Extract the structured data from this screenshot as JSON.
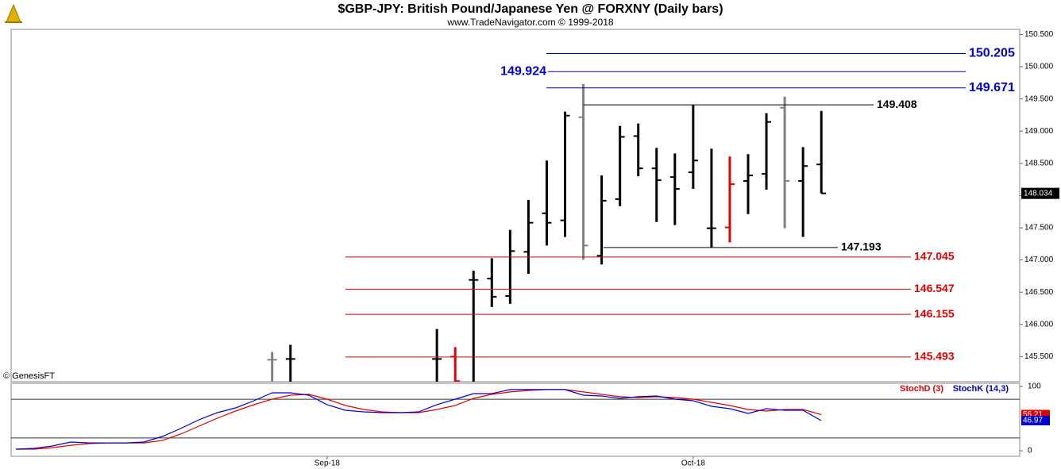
{
  "chart_data": [
    {
      "type": "ohlc",
      "title": "$GBP-JPY:  British Pound/Japanese Yen @ FORXNY  (Daily bars)",
      "subtitle": "www.TradeNavigator.com © 1999-2018",
      "credit": "© GenesisFT",
      "ylim": [
        145.11,
        150.58
      ],
      "yticks": [
        {
          "value": 145.5,
          "label": "145.500"
        },
        {
          "value": 146,
          "label": "146.000"
        },
        {
          "value": 146.5,
          "label": "146.500"
        },
        {
          "value": 147,
          "label": "147.000"
        },
        {
          "value": 147.5,
          "label": "147.500"
        },
        {
          "value": 148,
          "label": "148.000"
        },
        {
          "value": 148.5,
          "label": "148.500"
        },
        {
          "value": 149,
          "label": "149.000"
        },
        {
          "value": 149.5,
          "label": "149.500"
        },
        {
          "value": 150,
          "label": "150.000"
        },
        {
          "value": 150.5,
          "label": "150.500"
        }
      ],
      "open": [
        null,
        null,
        null,
        null,
        null,
        null,
        null,
        null,
        null,
        null,
        null,
        null,
        null,
        null,
        145.451,
        145.463,
        null,
        null,
        null,
        null,
        null,
        null,
        null,
        145.463,
        145.5,
        146.69,
        146.71,
        146.441,
        147.126,
        147.725,
        147.615,
        149.216,
        147.065,
        147.945,
        148.923,
        148.422,
        148.287,
        148.361,
        147.493,
        147.505,
        148.226,
        148.336,
        149.363,
        148.226,
        148.483
      ],
      "high": [
        null,
        null,
        null,
        null,
        null,
        null,
        null,
        null,
        null,
        null,
        null,
        null,
        null,
        null,
        145.573,
        145.683,
        null,
        null,
        null,
        null,
        null,
        null,
        null,
        145.928,
        145.647,
        146.833,
        147.028,
        147.468,
        147.933,
        148.544,
        149.302,
        149.73,
        148.312,
        149.082,
        149.119,
        148.74,
        148.654,
        149.408,
        148.727,
        148.605,
        148.642,
        149.278,
        149.534,
        148.752,
        149.314
      ],
      "low": [
        null,
        null,
        null,
        null,
        null,
        null,
        null,
        null,
        null,
        null,
        null,
        null,
        null,
        null,
        145.0,
        145.0,
        null,
        null,
        null,
        null,
        null,
        null,
        null,
        145.0,
        145.1,
        145.0,
        146.27,
        146.319,
        146.784,
        147.224,
        147.358,
        147.004,
        146.93,
        147.835,
        148.3,
        147.59,
        147.542,
        148.104,
        147.193,
        147.273,
        147.713,
        148.092,
        147.493,
        147.358,
        148.034
      ],
      "close": [
        null,
        null,
        null,
        null,
        null,
        null,
        null,
        null,
        null,
        null,
        null,
        null,
        null,
        null,
        145.451,
        145.463,
        null,
        null,
        null,
        null,
        null,
        null,
        null,
        145.463,
        145.12,
        146.69,
        146.429,
        147.138,
        147.578,
        147.578,
        149.241,
        147.224,
        147.92,
        148.911,
        148.422,
        148.238,
        148.104,
        148.544,
        147.493,
        148.177,
        148.312,
        149.143,
        148.226,
        148.458,
        148.034
      ],
      "colors": [
        null,
        null,
        null,
        null,
        null,
        null,
        null,
        null,
        null,
        null,
        null,
        null,
        null,
        null,
        "#808080",
        "#000000",
        null,
        null,
        null,
        null,
        null,
        null,
        null,
        "#000000",
        "#e00000",
        "#000000",
        "#000000",
        "#000000",
        "#000000",
        "#000000",
        "#000000",
        "#808080",
        "#000000",
        "#000000",
        "#000000",
        "#000000",
        "#000000",
        "#000000",
        "#000000",
        "#e00000",
        "#000000",
        "#000000",
        "#808080",
        "#000000",
        "#000000"
      ],
      "levels": [
        {
          "value": 150.205,
          "color": "#0000cc"
        },
        {
          "value": 149.924,
          "color": "#0000cc"
        },
        {
          "value": 149.671,
          "color": "#0000cc"
        },
        {
          "value": 149.408,
          "color": "#000000"
        },
        {
          "value": 147.193,
          "color": "#000000"
        },
        {
          "value": 147.045,
          "color": "#e00000"
        },
        {
          "value": 146.547,
          "color": "#e00000"
        },
        {
          "value": 146.155,
          "color": "#e00000"
        },
        {
          "value": 145.493,
          "color": "#e00000"
        }
      ]
    },
    {
      "type": "line",
      "categories": [
        null,
        null,
        null,
        null,
        null,
        null,
        null,
        null,
        null,
        null,
        null,
        null,
        null,
        null,
        null,
        null,
        null,
        "Sep-18",
        null,
        null,
        null,
        null,
        null,
        null,
        null,
        null,
        null,
        null,
        null,
        null,
        null,
        null,
        null,
        null,
        null,
        null,
        null,
        "Oct-18",
        null,
        null,
        null,
        null,
        null,
        null,
        null
      ],
      "ylim": [
        -8.6,
        104.9
      ],
      "yticks": [
        0,
        100
      ],
      "hlines": [
        20,
        80
      ],
      "series": [
        {
          "name": "StochD (3)",
          "color": "#e00000",
          "values": [
            2.5,
            2.5,
            4.9,
            8.6,
            11.1,
            12.3,
            12.3,
            12.3,
            16,
            25.9,
            38.3,
            50.6,
            61.7,
            71.6,
            80.2,
            86.4,
            87.7,
            80.2,
            70.4,
            64.2,
            60.5,
            59.3,
            59.3,
            64.2,
            70.4,
            81.5,
            87.7,
            91.4,
            93.8,
            95.1,
            95.1,
            91.4,
            87.7,
            84,
            82.7,
            84,
            82.7,
            80.2,
            75.3,
            70.4,
            64.2,
            61.7,
            64.2,
            64.2,
            56.21
          ]
        },
        {
          "name": "StochK (14,3)",
          "color": "#0000cc",
          "values": [
            2.5,
            3.7,
            7.4,
            13.6,
            12.3,
            12.3,
            12.3,
            13.6,
            22.2,
            34.6,
            48.1,
            59.3,
            66.7,
            77.8,
            90.1,
            90.1,
            86.4,
            71.6,
            63,
            60.5,
            59.3,
            59.3,
            60.5,
            71.6,
            80.2,
            88.9,
            88.9,
            95.1,
            95.1,
            95.1,
            95.1,
            86.4,
            85.2,
            81.5,
            84,
            85.2,
            80.2,
            77.8,
            69.1,
            65.4,
            58,
            65.4,
            63,
            63,
            46.97
          ]
        }
      ]
    }
  ]
}
